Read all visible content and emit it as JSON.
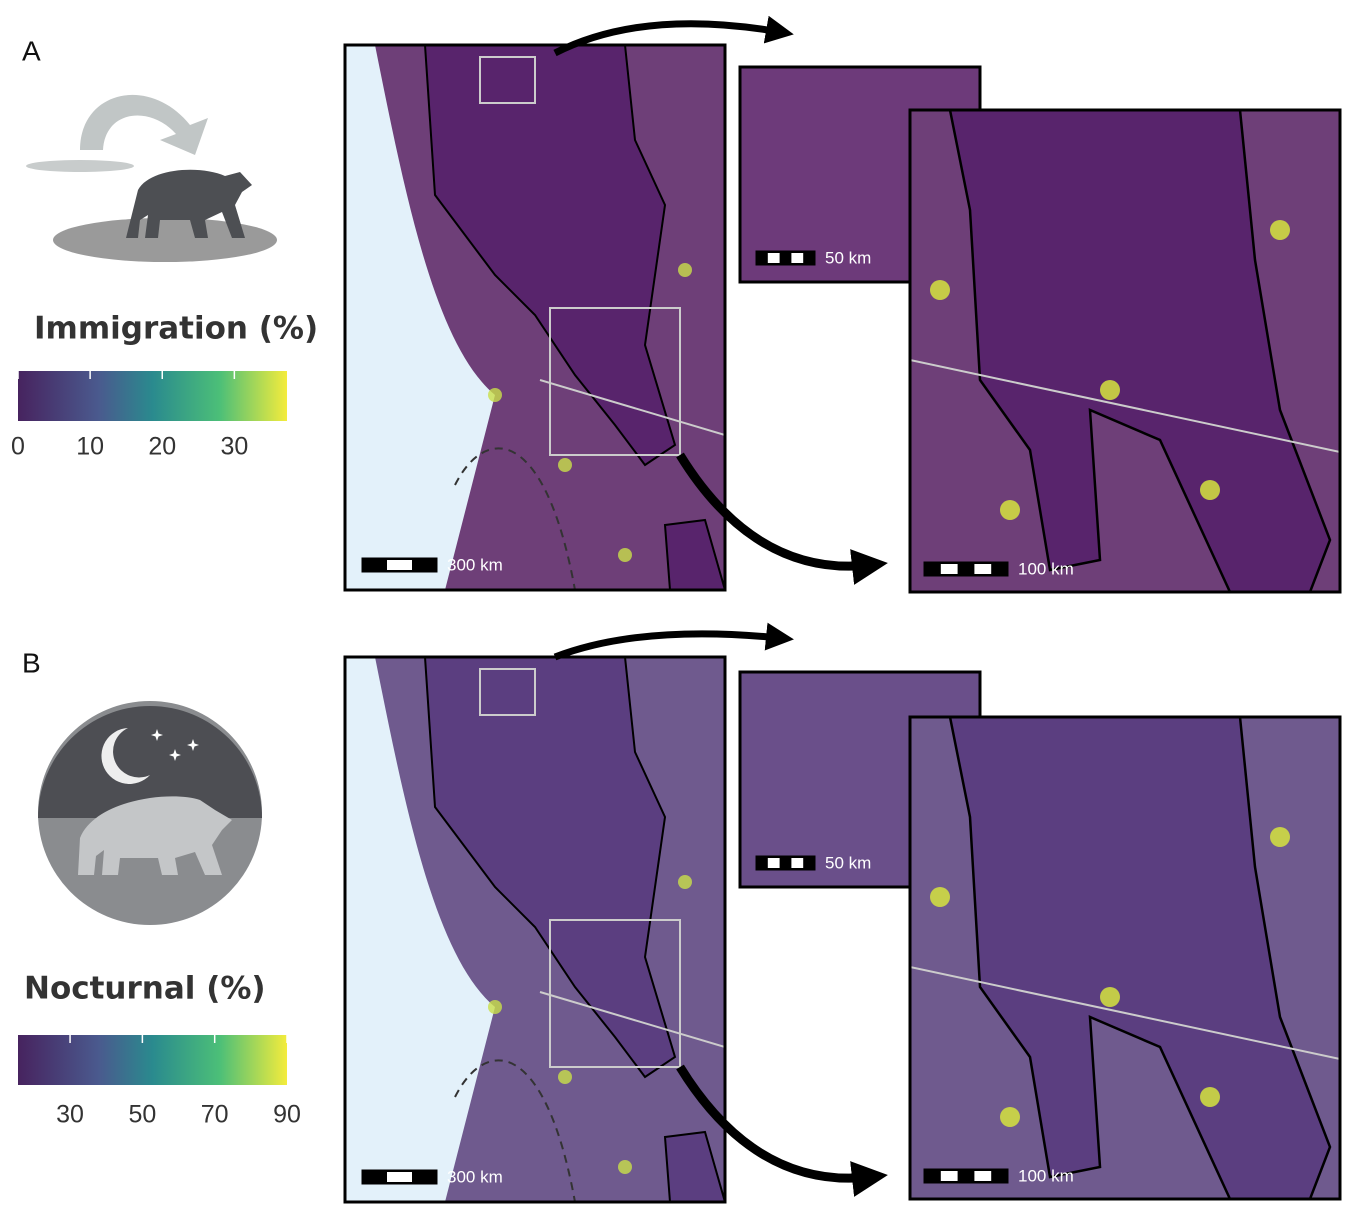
{
  "panels": [
    {
      "label": "A",
      "colorbar": {
        "title": "Immigration (%)",
        "lim": [
          0,
          37.3
        ],
        "ticks": [
          0,
          10,
          20,
          30
        ]
      },
      "scale_bars": [
        "300 km",
        "50 km",
        "100 km"
      ]
    },
    {
      "label": "B",
      "colorbar": {
        "title": "Nocturnal (%)",
        "lim": [
          15.6,
          90
        ],
        "ticks": [
          30,
          50,
          70,
          90
        ]
      },
      "scale_bars": [
        "300 km",
        "50 km",
        "100 km"
      ]
    }
  ]
}
